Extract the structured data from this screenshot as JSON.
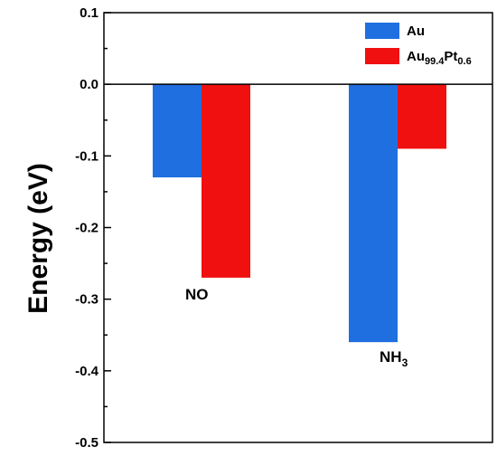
{
  "chart_data": {
    "type": "bar",
    "categories": [
      "NO",
      "NH3"
    ],
    "category_labels": [
      {
        "main": "NO",
        "sub": ""
      },
      {
        "main": "NH",
        "sub": "3"
      }
    ],
    "series": [
      {
        "name": "Au",
        "name_main": "Au",
        "name_parts": [],
        "color": "#1f6fe0",
        "values": [
          -0.13,
          -0.36
        ]
      },
      {
        "name": "Au99.4Pt0.6",
        "name_main": "Au",
        "name_parts": [
          {
            "t": "Au",
            "sub": false
          },
          {
            "t": "99.4",
            "sub": true
          },
          {
            "t": "Pt",
            "sub": false
          },
          {
            "t": "0.6",
            "sub": true
          }
        ],
        "color": "#f01010",
        "values": [
          -0.27,
          -0.09
        ]
      }
    ],
    "ylabel": "Energy (eV)",
    "xlabel": "",
    "ylim": [
      -0.5,
      0.1
    ],
    "yticks": [
      "0.1",
      "0.0",
      "-0.1",
      "-0.2",
      "-0.3",
      "-0.4",
      "-0.5"
    ],
    "legend_position": "top-right",
    "grid": false
  }
}
